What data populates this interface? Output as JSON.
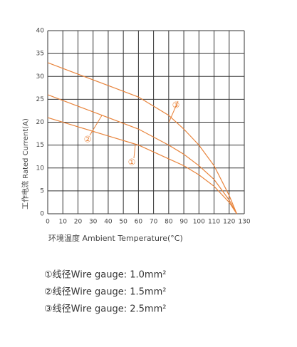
{
  "chart_data": {
    "type": "line",
    "xlabel": "环境温度 Ambient Temperature(°C)",
    "ylabel": "工作电流 Rated Current(A)",
    "x": [
      0,
      20,
      40,
      60,
      80,
      90,
      100,
      110,
      120,
      125
    ],
    "series": [
      {
        "name": "①线径Wire gauge: 1.0mm²",
        "color": "#e8843c",
        "values": [
          21,
          19,
          17,
          15,
          12,
          10.5,
          8.5,
          6,
          2.5,
          0
        ]
      },
      {
        "name": "②线径Wire gauge: 1.5mm²",
        "color": "#e8843c",
        "values": [
          26,
          23.5,
          21,
          18.5,
          15,
          13,
          10.5,
          7.5,
          3,
          0
        ]
      },
      {
        "name": "③线径Wire gauge: 2.5mm²",
        "color": "#e8843c",
        "values": [
          33,
          30.5,
          28,
          25.5,
          21.5,
          18.5,
          15,
          10.5,
          4,
          0
        ]
      }
    ],
    "annotations": [
      "①",
      "②",
      "③"
    ],
    "xlim": [
      0,
      130
    ],
    "xticks": [
      0,
      10,
      20,
      30,
      40,
      50,
      60,
      70,
      80,
      90,
      100,
      110,
      120,
      130
    ],
    "ylim": [
      0,
      40
    ],
    "yticks": [
      0,
      5,
      10,
      15,
      20,
      25,
      30,
      35,
      40
    ],
    "grid": true
  }
}
